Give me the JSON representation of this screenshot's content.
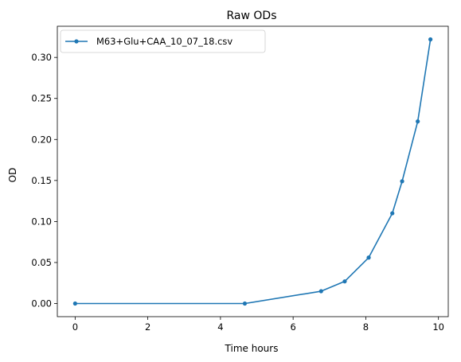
{
  "chart_data": {
    "type": "line",
    "title": "Raw ODs",
    "xlabel": "Time hours",
    "ylabel": "OD",
    "xlim": [
      -0.49,
      10.27
    ],
    "ylim": [
      -0.016,
      0.338
    ],
    "xticks": [
      0,
      2,
      4,
      6,
      8,
      10
    ],
    "yticks": [
      0.0,
      0.05,
      0.1,
      0.15,
      0.2,
      0.25,
      0.3
    ],
    "xtick_labels": [
      "0",
      "2",
      "4",
      "6",
      "8",
      "10"
    ],
    "ytick_labels": [
      "0.00",
      "0.05",
      "0.10",
      "0.15",
      "0.20",
      "0.25",
      "0.30"
    ],
    "grid": false,
    "legend": "upper left",
    "series": [
      {
        "name": "M63+Glu+CAA_10_07_18.csv",
        "color": "#1f77b4",
        "marker": "circle",
        "x": [
          0.0,
          4.67,
          6.77,
          7.42,
          8.08,
          8.73,
          9.0,
          9.43,
          9.78
        ],
        "y": [
          0.0,
          0.0,
          0.015,
          0.027,
          0.056,
          0.11,
          0.149,
          0.222,
          0.322
        ]
      }
    ]
  }
}
